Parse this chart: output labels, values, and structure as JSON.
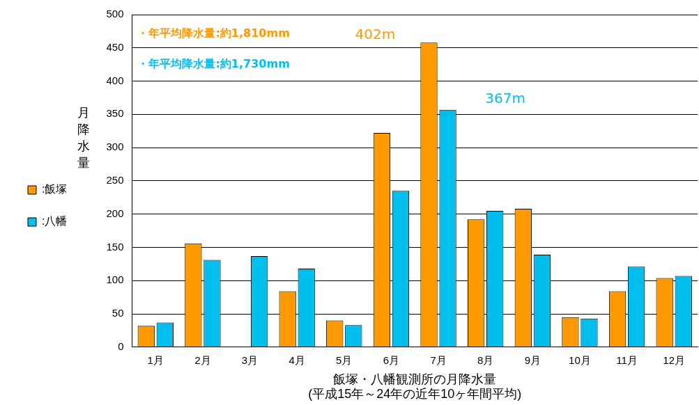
{
  "chart_data": {
    "type": "bar",
    "xlabel": "飯塚・八幡観測所の月降水量\n(平成15年～24年の近年10ヶ年間平均)",
    "ylabel": "月降水量",
    "categories": [
      "1月",
      "2月",
      "3月",
      "4月",
      "5月",
      "6月",
      "7月",
      "8月",
      "9月",
      "10月",
      "11月",
      "12月"
    ],
    "series": [
      {
        "name": ":飯塚",
        "color": "#ff9900",
        "values": [
          32,
          156,
          null,
          84,
          40,
          322,
          458,
          192,
          208,
          45,
          84,
          104
        ]
      },
      {
        "name": ":八幡",
        "color": "#00bfef",
        "values": [
          37,
          131,
          137,
          118,
          33,
          235,
          357,
          205,
          139,
          43,
          121,
          107
        ]
      }
    ],
    "ylim": [
      0,
      500
    ],
    "yticks": [
      0,
      50,
      100,
      150,
      200,
      250,
      300,
      350,
      400,
      450,
      500
    ],
    "grid": "y",
    "legend": "left",
    "annotations": [
      "・年平均降水量:約1,810mm",
      "・年平均降水量:約1,730mm",
      "402m",
      "367m"
    ]
  }
}
